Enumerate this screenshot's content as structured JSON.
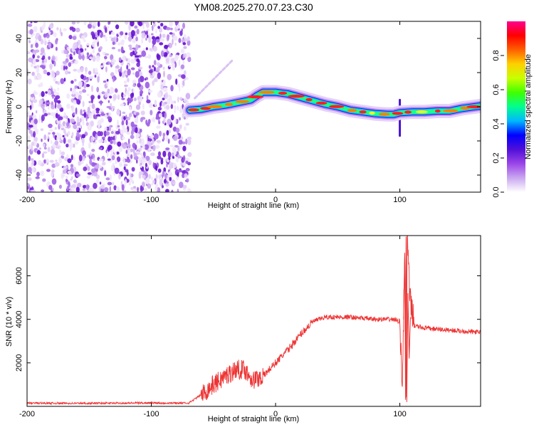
{
  "title": "YM08.2025.270.07.23.C30",
  "chart_data": [
    {
      "type": "heatmap",
      "xlabel": "Height of straight line (km)",
      "ylabel": "Frequency (Hz)",
      "xlim": [
        -200,
        165
      ],
      "ylim": [
        -50,
        50
      ],
      "xticks": [
        -200,
        -100,
        0,
        100
      ],
      "xtick_labels": [
        "-200",
        "-100",
        "0",
        "100"
      ],
      "yticks": [
        -40,
        -20,
        0,
        20,
        40
      ],
      "ytick_labels": [
        "-40",
        "-20",
        "0",
        "20",
        "40"
      ],
      "noise_region_x": [
        -200,
        -69
      ],
      "ridge": {
        "x": [
          -69,
          -60,
          -50,
          -40,
          -30,
          -20,
          -15,
          -10,
          0,
          10,
          20,
          30,
          40,
          50,
          60,
          70,
          80,
          90,
          95,
          100,
          110,
          120,
          130,
          140,
          150,
          160,
          165
        ],
        "y": [
          -2,
          -1.5,
          0,
          1,
          2.5,
          4,
          6.5,
          8.5,
          8.5,
          7.5,
          5.5,
          3.5,
          1.5,
          0,
          -2,
          -3,
          -4,
          -4.5,
          -4.5,
          -3.5,
          -3,
          -3,
          -2.5,
          -2.5,
          -1,
          0,
          0.5
        ]
      },
      "faint_line": {
        "x": [
          -65,
          -35
        ],
        "y": [
          5,
          27
        ]
      },
      "spike": {
        "x": 100,
        "y_range": [
          -17,
          4
        ]
      },
      "colorbar": {
        "label": "Normalized spectral amplitude",
        "range": [
          0,
          1
        ],
        "ticks": [
          0.0,
          0.2,
          0.4,
          0.6,
          0.8
        ],
        "tick_labels": [
          "0.0",
          "0.2",
          "0.4",
          "0.6",
          "0.8"
        ],
        "colors": [
          "#ffffff",
          "#c9a8f0",
          "#9b45e8",
          "#5010d8",
          "#0000ff",
          "#00b8ff",
          "#00ff90",
          "#40ff00",
          "#c8ff00",
          "#ffd000",
          "#ff6000",
          "#ff0000",
          "#ff0090"
        ]
      }
    },
    {
      "type": "line",
      "xlabel": "Height of straight line (km)",
      "ylabel": "SNR (10 * v/v)",
      "xlim": [
        -200,
        165
      ],
      "ylim": [
        0,
        7850
      ],
      "xticks": [
        -200,
        -100,
        0,
        100
      ],
      "xtick_labels": [
        "-200",
        "-100",
        "0",
        "100"
      ],
      "yticks": [
        2000,
        4000,
        6000
      ],
      "ytick_labels": [
        "2000",
        "4000",
        "6000"
      ],
      "color": "#ee3333",
      "series": [
        {
          "x": [
            -200,
            -150,
            -100,
            -70,
            -58,
            -50,
            -40,
            -32,
            -25,
            -18,
            -10,
            0,
            10,
            20,
            30,
            40,
            60,
            80,
            95,
            100,
            102,
            104,
            105,
            106,
            108,
            112,
            120,
            140,
            165
          ],
          "values": [
            150,
            140,
            160,
            150,
            600,
            1000,
            1400,
            1700,
            1700,
            1200,
            1400,
            2000,
            2600,
            3300,
            3900,
            4100,
            4100,
            4000,
            4000,
            3900,
            1000,
            7000,
            200,
            7800,
            5000,
            3700,
            3600,
            3500,
            3400
          ]
        }
      ]
    }
  ]
}
